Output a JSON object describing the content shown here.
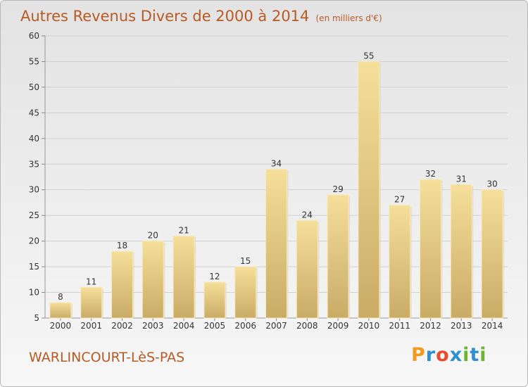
{
  "header": {
    "title": "Autres Revenus Divers de 2000 à 2014",
    "subtitle": "(en milliers d'€)"
  },
  "footer": {
    "commune": "WARLINCOURT-LèS-PAS",
    "logo_letters": [
      "P",
      "r",
      "o",
      "x",
      "i",
      "t",
      "i"
    ]
  },
  "colors": {
    "title": "#b85a24",
    "bar_light": "#f5df9a",
    "bar_dark": "#c9ab66",
    "logo": [
      "#f39a1e",
      "#2f8fcf",
      "#e74c2e",
      "#2f8fcf",
      "#6bb52f",
      "#2f8fcf",
      "#6bb52f"
    ]
  },
  "chart_data": {
    "type": "bar",
    "categories": [
      "2000",
      "2001",
      "2002",
      "2003",
      "2004",
      "2005",
      "2006",
      "2007",
      "2008",
      "2009",
      "2010",
      "2011",
      "2012",
      "2013",
      "2014"
    ],
    "values": [
      8,
      11,
      18,
      20,
      21,
      12,
      15,
      34,
      24,
      29,
      55,
      27,
      32,
      31,
      30
    ],
    "data_labels": [
      "8",
      "11",
      "18",
      "20",
      "21",
      "12",
      "15",
      "34",
      "24",
      "29",
      "55",
      "27",
      "32",
      "31",
      "30"
    ],
    "yticks": [
      "5",
      "10",
      "15",
      "20",
      "25",
      "30",
      "35",
      "40",
      "45",
      "50",
      "55",
      "60"
    ],
    "ylim": [
      5,
      60
    ],
    "grid": true
  }
}
